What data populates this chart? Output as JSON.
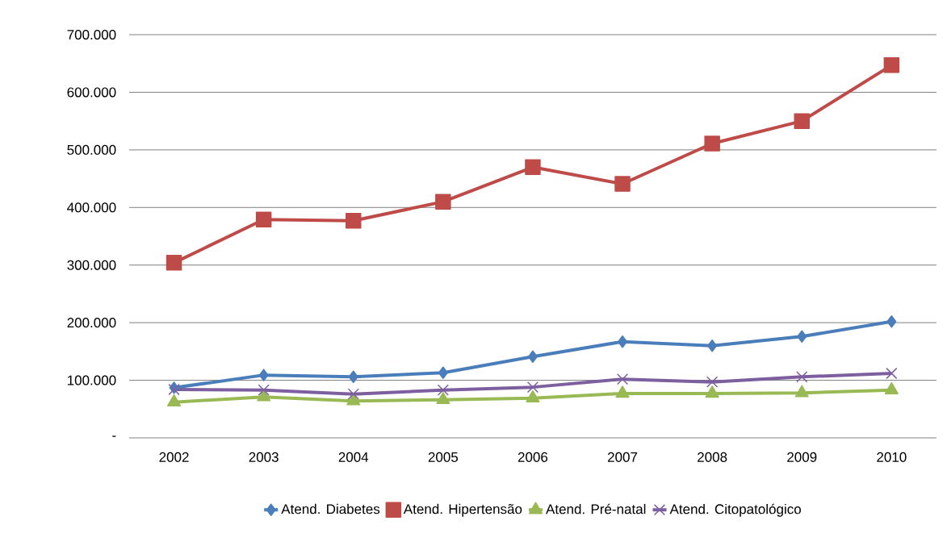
{
  "chart_data": {
    "type": "line",
    "categories": [
      "2002",
      "2003",
      "2004",
      "2005",
      "2006",
      "2007",
      "2008",
      "2009",
      "2010"
    ],
    "series": [
      {
        "name": "Atend. Diabetes",
        "color": "#4a7ebb",
        "marker": "diamond",
        "values": [
          87000,
          109000,
          106000,
          113000,
          141000,
          167000,
          160000,
          176000,
          202000
        ]
      },
      {
        "name": "Atend. Hipertensão",
        "color": "#be4b48",
        "marker": "square",
        "values": [
          304000,
          379000,
          377000,
          410000,
          470000,
          441000,
          511000,
          550000,
          647000
        ]
      },
      {
        "name": "Atend. Pré-natal",
        "color": "#98b954",
        "marker": "triangle",
        "values": [
          62000,
          71000,
          64000,
          66000,
          69000,
          77000,
          77000,
          78000,
          83000
        ]
      },
      {
        "name": "Atend. Citopatológico",
        "color": "#7d5fa0",
        "marker": "cross",
        "values": [
          84000,
          83000,
          76000,
          83000,
          88000,
          102000,
          97000,
          106000,
          112000
        ]
      }
    ],
    "ylim": [
      0,
      700000
    ],
    "yticks": [
      {
        "value": 0,
        "label": "-"
      },
      {
        "value": 100000,
        "label": "100.000"
      },
      {
        "value": 200000,
        "label": "200.000"
      },
      {
        "value": 300000,
        "label": "300.000"
      },
      {
        "value": 400000,
        "label": "400.000"
      },
      {
        "value": 500000,
        "label": "500.000"
      },
      {
        "value": 600000,
        "label": "600.000"
      },
      {
        "value": 700000,
        "label": "700.000"
      }
    ],
    "grid": "y",
    "legend": "bottom",
    "line_style": "solid"
  }
}
